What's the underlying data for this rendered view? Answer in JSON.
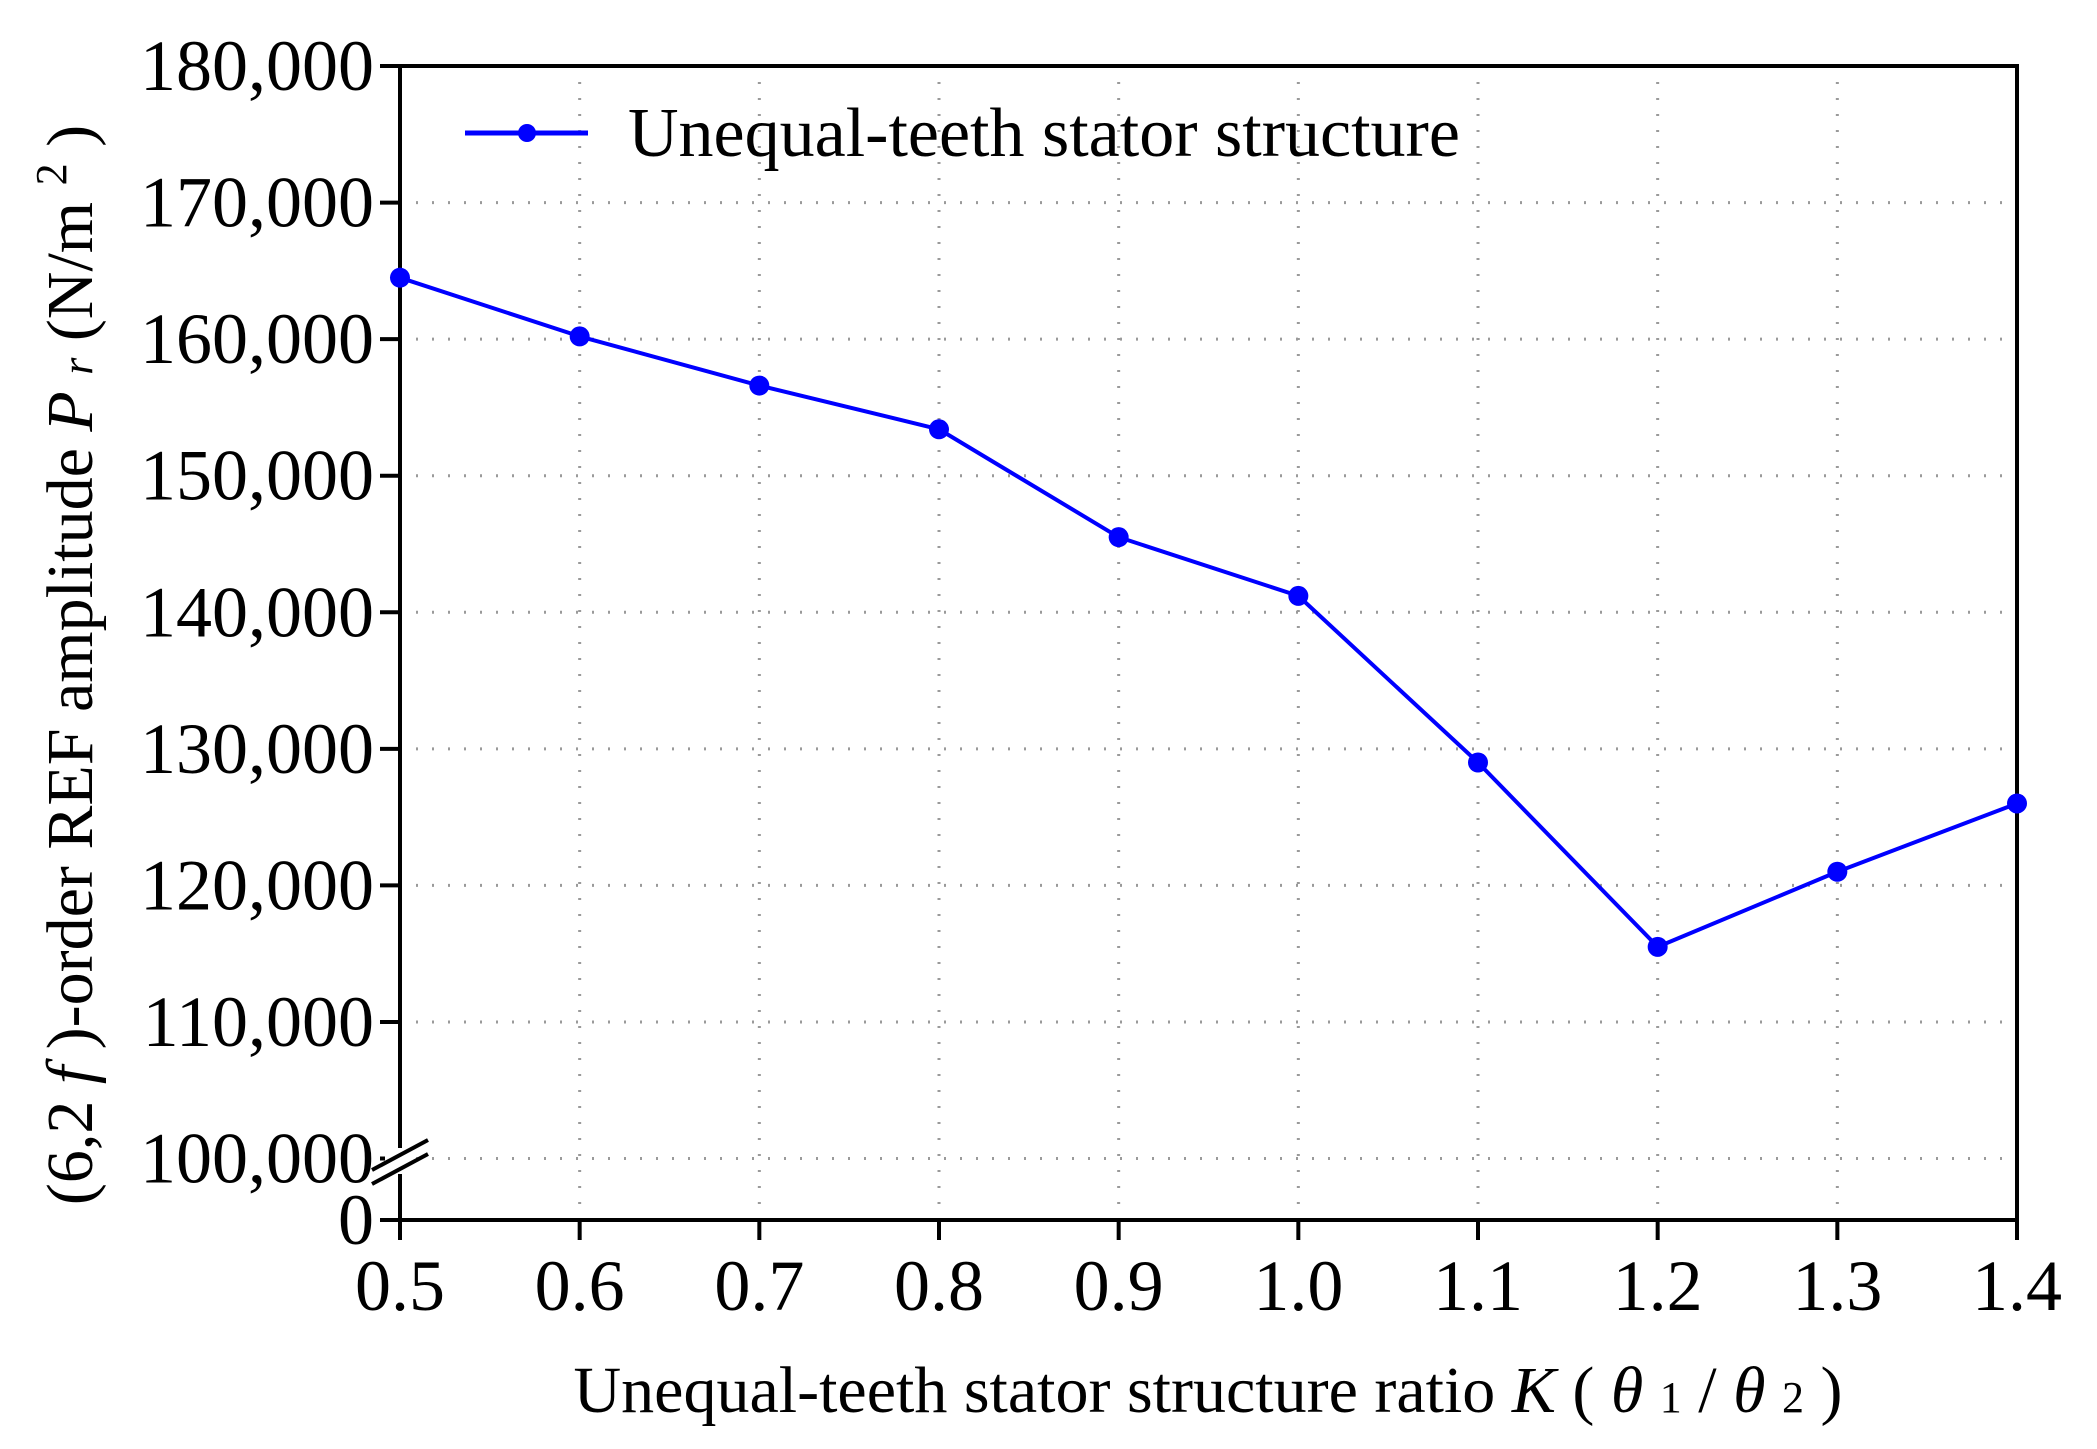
{
  "chart_data": {
    "type": "line",
    "x": [
      0.5,
      0.6,
      0.7,
      0.8,
      0.9,
      1.0,
      1.1,
      1.2,
      1.3,
      1.4
    ],
    "series": [
      {
        "name": "Unequal-teeth stator structure",
        "values": [
          164500,
          160200,
          156600,
          153400,
          145500,
          141200,
          129000,
          115500,
          121000,
          126000
        ],
        "color": "#0000ff"
      }
    ],
    "xlim": [
      0.5,
      1.4
    ],
    "ylim": [
      95500,
      180000
    ],
    "y_axis_break": true,
    "y_zero_label": "0",
    "x_ticks": [
      "0.5",
      "0.6",
      "0.7",
      "0.8",
      "0.9",
      "1.0",
      "1.1",
      "1.2",
      "1.3",
      "1.4"
    ],
    "y_ticks": [
      100000,
      110000,
      120000,
      130000,
      140000,
      150000,
      160000,
      170000,
      180000
    ],
    "y_tick_labels": [
      "100,000",
      "110,000",
      "120,000",
      "130,000",
      "140,000",
      "150,000",
      "160,000",
      "170,000",
      "180,000"
    ],
    "xlabel": {
      "prefix": "Unequal-teeth stator structure ratio ",
      "symbol": "K",
      "paren_open": " (",
      "theta1": "θ",
      "sub1": "1",
      "slash": "/",
      "theta2": "θ",
      "sub2": "2",
      "paren_close": ")"
    },
    "ylabel": {
      "open": "(6,2",
      "f": "f",
      "rest": ")-order REF amplitude  ",
      "P": "P",
      "r": "r",
      "unit_open": " (N/m",
      "unit_sup": "2",
      "unit_close": ")"
    },
    "legend_position": "top-left",
    "grid": "dotted"
  }
}
